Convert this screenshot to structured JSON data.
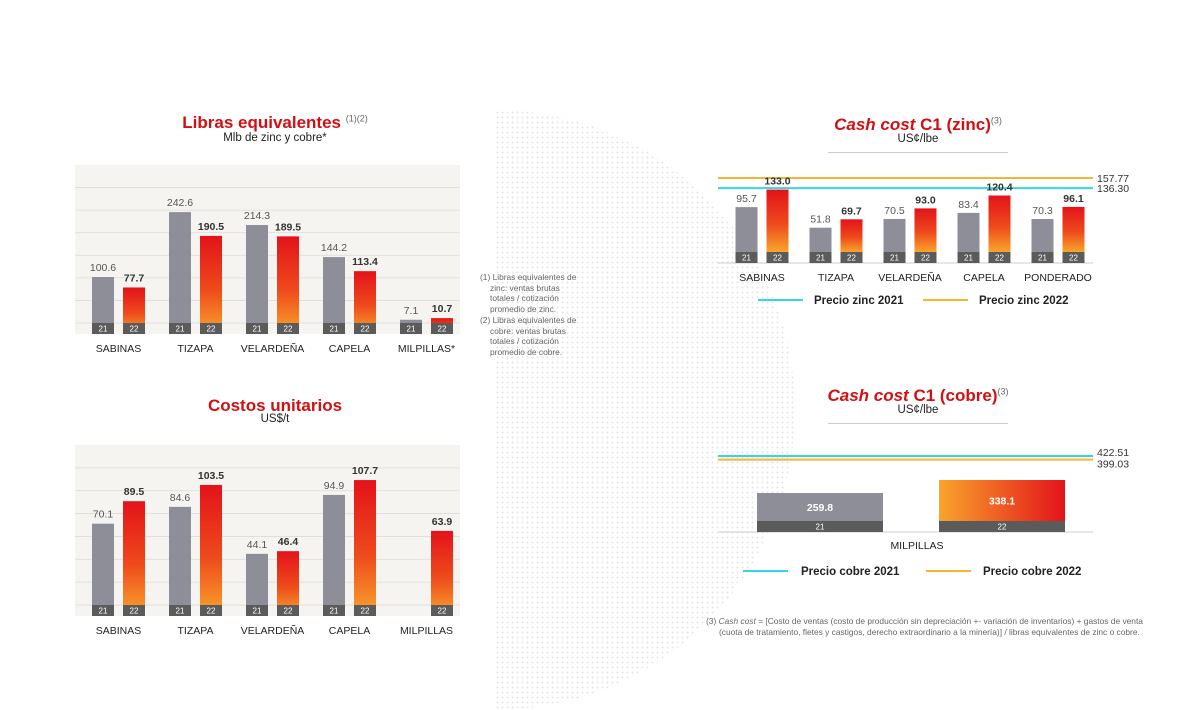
{
  "charts": {
    "libras": {
      "title": "Libras equivalentes",
      "title_sup": "(1)(2)",
      "subtitle": "Mlb de zinc y cobre*"
    },
    "costos": {
      "title": "Costos unitarios",
      "subtitle": "US$/t"
    },
    "zinc": {
      "title_italic": "Cash cost",
      "title_rest": " C1 (zinc)",
      "title_sup": "(3)",
      "subtitle": "US¢/lbe"
    },
    "cobre": {
      "title_italic": "Cash cost",
      "title_rest": " C1 (cobre)",
      "title_sup": "(3)",
      "subtitle": "US¢/lbe"
    }
  },
  "notes": {
    "note1": [
      "(1) Libras equivalentes de",
      "zinc:  ventas brutas",
      "totales / cotización",
      "promedio de zinc."
    ],
    "note2": [
      "(2) Libras equivalentes de",
      "cobre:  ventas brutas",
      "totales / cotización",
      "promedio de cobre."
    ],
    "note3_italic": "Cash cost",
    "note3_line1": " = [Costo de ventas (costo de producción sin depreciación +- variación de inventarios) + gastos de venta",
    "note3_prefix": "(3)",
    "note3_line2": "(cuota de tratamiento, fletes y castigos, derecho extraordinario a la minería)] / libras equivalentes de zinc o cobre."
  },
  "colors": {
    "gray_bar": "#8e8e98",
    "red_top": "#e3131a",
    "orange_bottom": "#f9a42c",
    "title_red": "#d40f14",
    "cyan": "#35d6e0",
    "gold": "#f5b533",
    "year_badge": "#5b5b5b",
    "plot_bg": "#f5f4f1"
  },
  "chart_data": [
    {
      "id": "libras",
      "type": "bar",
      "title": "Libras equivalentes",
      "ylabel": "Mlb de zinc y cobre*",
      "categories": [
        "SABINAS",
        "TIZAPA",
        "VELARDEÑA",
        "CAPELA",
        "MILPILLAS*"
      ],
      "series": [
        {
          "name": "21",
          "values": [
            100.6,
            242.6,
            214.3,
            144.2,
            7.1
          ]
        },
        {
          "name": "22",
          "values": [
            77.7,
            190.5,
            189.5,
            113.4,
            10.7
          ]
        }
      ],
      "labels_21": [
        "100.6",
        "242.6",
        "214.3",
        "144.2",
        "7.1"
      ],
      "labels_22": [
        "77.7",
        "190.5",
        "189.5",
        "113.4",
        "10.7"
      ],
      "ylim": [
        0,
        280
      ],
      "grid": true
    },
    {
      "id": "costos",
      "type": "bar",
      "title": "Costos unitarios",
      "ylabel": "US$/t",
      "categories": [
        "SABINAS",
        "TIZAPA",
        "VELARDEÑA",
        "CAPELA",
        "MILPILLAS"
      ],
      "series": [
        {
          "name": "21",
          "values": [
            70.1,
            84.6,
            44.1,
            94.9,
            null
          ]
        },
        {
          "name": "22",
          "values": [
            89.5,
            103.5,
            46.4,
            107.7,
            63.9
          ]
        }
      ],
      "labels_21": [
        "70.1",
        "84.6",
        "44.1",
        "94.9",
        ""
      ],
      "labels_22": [
        "89.5",
        "103.5",
        "46.4",
        "107.7",
        "63.9"
      ],
      "ylim": [
        0,
        125
      ],
      "grid": true
    },
    {
      "id": "zinc",
      "type": "bar",
      "title": "Cash cost C1 (zinc)",
      "ylabel": "US¢/lbe",
      "categories": [
        "SABINAS",
        "TIZAPA",
        "VELARDEÑA",
        "CAPELA",
        "PONDERADO"
      ],
      "series": [
        {
          "name": "21",
          "values": [
            95.7,
            51.8,
            70.5,
            83.4,
            70.3
          ]
        },
        {
          "name": "22",
          "values": [
            133.0,
            69.7,
            93.0,
            120.4,
            96.1
          ]
        }
      ],
      "labels_21": [
        "95.7",
        "51.8",
        "70.5",
        "83.4",
        "70.3"
      ],
      "labels_22": [
        "133.0",
        "69.7",
        "93.0",
        "120.4",
        "96.1"
      ],
      "reference_lines": [
        {
          "name": "Precio zinc 2021",
          "value": 136.3,
          "label": "136.30",
          "color": "#35d6e0"
        },
        {
          "name": "Precio zinc 2022",
          "value": 157.77,
          "label": "157.77",
          "color": "#f5b533"
        }
      ],
      "legend": "bottom",
      "ylim": [
        0,
        165
      ]
    },
    {
      "id": "cobre",
      "type": "bar",
      "title": "Cash cost C1 (cobre)",
      "ylabel": "US¢/lbe",
      "categories": [
        "MILPILLAS"
      ],
      "series": [
        {
          "name": "21",
          "values": [
            259.8
          ]
        },
        {
          "name": "22",
          "values": [
            338.1
          ]
        }
      ],
      "labels_21": [
        "259.8"
      ],
      "labels_22": [
        "338.1"
      ],
      "reference_lines": [
        {
          "name": "Precio cobre 2021",
          "value": 422.51,
          "label": "422.51",
          "color": "#35d6e0"
        },
        {
          "name": "Precio cobre 2022",
          "value": 399.03,
          "label": "399.03",
          "color": "#f5b533"
        }
      ],
      "legend": "bottom",
      "ylim": [
        0,
        430
      ]
    }
  ]
}
